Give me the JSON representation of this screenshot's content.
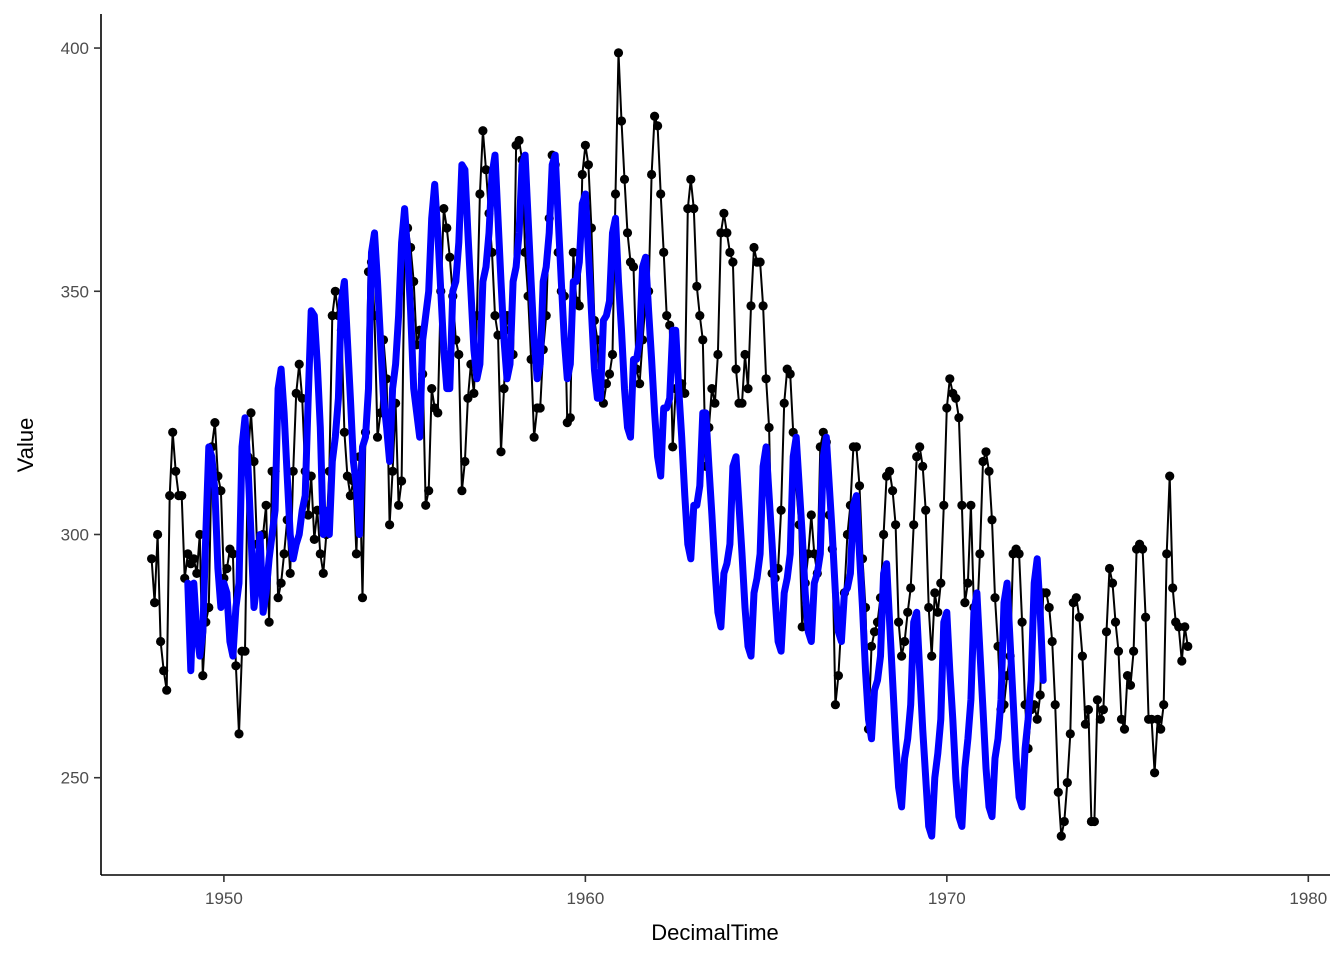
{
  "chart_data": {
    "type": "line",
    "xlabel": "DecimalTime",
    "ylabel": "Value",
    "xlim": [
      1946.6,
      1980.6
    ],
    "ylim": [
      230,
      407
    ],
    "x_ticks": [
      1950,
      1960,
      1970,
      1980
    ],
    "y_ticks": [
      250,
      300,
      350,
      400
    ],
    "x_tick_labels": [
      "1950",
      "1960",
      "1970",
      "1980"
    ],
    "y_tick_labels": [
      "250",
      "300",
      "350",
      "400"
    ],
    "grid": false,
    "legend": "none",
    "x_start": 1948.0,
    "x_step": 0.08333,
    "series": [
      {
        "kind": "line+points",
        "color": "#000000",
        "values": [
          295,
          286,
          300,
          278,
          272,
          268,
          308,
          321,
          313,
          308,
          308,
          291,
          296,
          294,
          295,
          292,
          300,
          271,
          282,
          285,
          318,
          323,
          312,
          309,
          291,
          293,
          297,
          296,
          273,
          259,
          276,
          276,
          316,
          325,
          315,
          298,
          292,
          300,
          306,
          282,
          313,
          313,
          287,
          290,
          296,
          303,
          292,
          313,
          329,
          335,
          328,
          313,
          304,
          312,
          299,
          305,
          296,
          292,
          300,
          313,
          345,
          350,
          345,
          342,
          321,
          312,
          308,
          311,
          296,
          316,
          287,
          321,
          354,
          356,
          345,
          320,
          325,
          340,
          332,
          302,
          313,
          327,
          306,
          311,
          359,
          363,
          359,
          352,
          339,
          342,
          333,
          306,
          309,
          330,
          326,
          325,
          350,
          367,
          363,
          357,
          349,
          340,
          337,
          309,
          315,
          328,
          335,
          329,
          345,
          370,
          383,
          375,
          366,
          358,
          345,
          341,
          317,
          330,
          345,
          342,
          337,
          380,
          381,
          377,
          358,
          349,
          336,
          320,
          326,
          326,
          338,
          345,
          365,
          378,
          376,
          358,
          350,
          349,
          323,
          324,
          358,
          348,
          347,
          374,
          380,
          376,
          363,
          344,
          340,
          329,
          327,
          331,
          333,
          337,
          370,
          399,
          385,
          373,
          362,
          356,
          355,
          334,
          331,
          340,
          348,
          350,
          374,
          386,
          384,
          370,
          358,
          345,
          343,
          318,
          330,
          330,
          331,
          329,
          367,
          373,
          367,
          351,
          345,
          340,
          314,
          322,
          330,
          327,
          337,
          362,
          366,
          362,
          358,
          356,
          334,
          327,
          327,
          337,
          330,
          347,
          359,
          356,
          356,
          347,
          332,
          322,
          292,
          291,
          293,
          305,
          327,
          334,
          333,
          321,
          310,
          302,
          281,
          290,
          296,
          304,
          296,
          292,
          318,
          321,
          319,
          304,
          297,
          265,
          271,
          282,
          288,
          300,
          306,
          318,
          318,
          310,
          295,
          285,
          260,
          277,
          280,
          282,
          287,
          300,
          312,
          313,
          309,
          302,
          282,
          275,
          278,
          284,
          289,
          302,
          316,
          318,
          314,
          305,
          285,
          275,
          288,
          284,
          290,
          306,
          326,
          332,
          329,
          328,
          324,
          306,
          286,
          290,
          306,
          285,
          282,
          296,
          315,
          317,
          313,
          303,
          287,
          277,
          264,
          265,
          271,
          275,
          296,
          297,
          296,
          282,
          265,
          256,
          264,
          265,
          262,
          267,
          288,
          288,
          285,
          278,
          265,
          247,
          238,
          241,
          249,
          259,
          286,
          287,
          283,
          275,
          261,
          264,
          241,
          241,
          266,
          262,
          264,
          280,
          293,
          290,
          282,
          276,
          262,
          260,
          271,
          269,
          276,
          297,
          298,
          297,
          283,
          262,
          262,
          251,
          262,
          260,
          265,
          296,
          312,
          289,
          282,
          281,
          274,
          281,
          277
        ]
      },
      {
        "kind": "line",
        "color": "#0000ff",
        "values": [
          290,
          272,
          290,
          280,
          275,
          280,
          300,
          318,
          316,
          309,
          293,
          285,
          290,
          288,
          278,
          275,
          285,
          290,
          318,
          324,
          314,
          300,
          285,
          290,
          300,
          284,
          288,
          295,
          300,
          305,
          330,
          334,
          325,
          312,
          300,
          295,
          298,
          300,
          305,
          308,
          328,
          346,
          345,
          335,
          322,
          300,
          305,
          300,
          315,
          320,
          328,
          348,
          352,
          340,
          328,
          315,
          310,
          300,
          318,
          320,
          330,
          358,
          362,
          352,
          340,
          328,
          322,
          315,
          330,
          335,
          345,
          360,
          367,
          358,
          346,
          330,
          325,
          320,
          340,
          345,
          350,
          365,
          372,
          362,
          350,
          338,
          330,
          330,
          350,
          352,
          360,
          376,
          375,
          362,
          350,
          338,
          332,
          335,
          352,
          355,
          362,
          374,
          378,
          365,
          352,
          340,
          332,
          335,
          352,
          355,
          362,
          376,
          378,
          365,
          352,
          340,
          332,
          335,
          352,
          355,
          362,
          376,
          378,
          365,
          352,
          340,
          332,
          335,
          352,
          352,
          356,
          368,
          370,
          358,
          346,
          334,
          328,
          328,
          344,
          345,
          348,
          362,
          365,
          352,
          342,
          330,
          322,
          320,
          336,
          336,
          340,
          355,
          357,
          346,
          336,
          325,
          316,
          312,
          326,
          326,
          328,
          342,
          342,
          330,
          320,
          308,
          298,
          295,
          306,
          306,
          310,
          325,
          325,
          314,
          304,
          293,
          284,
          281,
          292,
          294,
          298,
          314,
          316,
          306,
          296,
          285,
          277,
          275,
          288,
          291,
          296,
          314,
          318,
          308,
          298,
          287,
          278,
          276,
          288,
          291,
          296,
          316,
          320,
          310,
          300,
          288,
          280,
          278,
          290,
          292,
          296,
          316,
          320,
          310,
          300,
          288,
          280,
          278,
          288,
          289,
          292,
          306,
          308,
          296,
          285,
          272,
          262,
          258,
          268,
          270,
          275,
          292,
          294,
          282,
          270,
          258,
          248,
          244,
          254,
          258,
          265,
          282,
          284,
          272,
          260,
          250,
          240,
          238,
          250,
          255,
          262,
          282,
          284,
          272,
          262,
          250,
          242,
          240,
          252,
          258,
          266,
          284,
          288,
          276,
          264,
          252,
          244,
          242,
          254,
          258,
          266,
          286,
          290,
          278,
          266,
          254,
          246,
          244,
          256,
          262,
          270,
          290,
          295,
          284,
          270
        ]
      }
    ]
  }
}
